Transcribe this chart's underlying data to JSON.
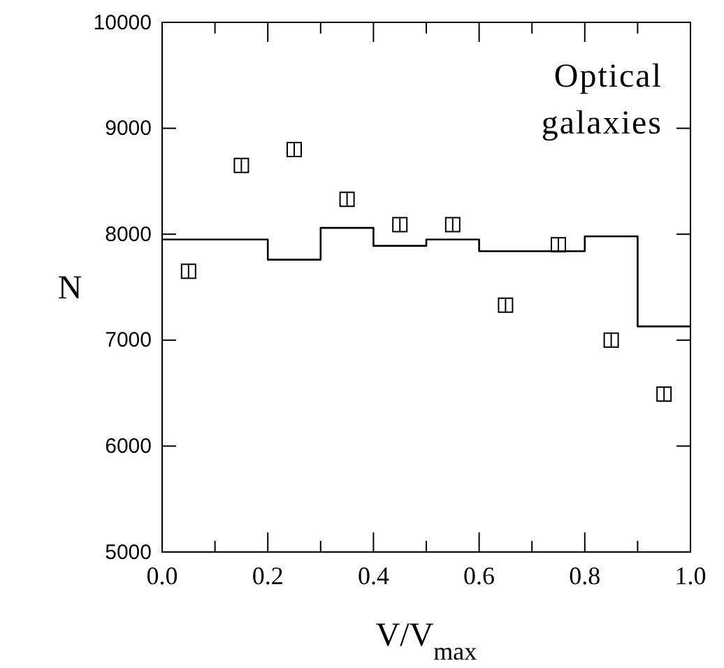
{
  "chart_data": {
    "type": "scatter",
    "xlabel": "V/V$_{max}$",
    "ylabel": "N",
    "annotations": [
      "Optical\ngalaxies"
    ],
    "xlim": [
      0,
      1
    ],
    "ylim": [
      5000,
      10000
    ],
    "xticks": [
      {
        "value": 0,
        "label": "0.0"
      },
      {
        "value": 0.1,
        "label": null
      },
      {
        "value": 0.2,
        "label": "0.2"
      },
      {
        "value": 0.3,
        "label": null
      },
      {
        "value": 0.4,
        "label": "0.4"
      },
      {
        "value": 0.5,
        "label": null
      },
      {
        "value": 0.6,
        "label": "0.6"
      },
      {
        "value": 0.7,
        "label": null
      },
      {
        "value": 0.8,
        "label": "0.8"
      },
      {
        "value": 0.9,
        "label": null
      },
      {
        "value": 1,
        "label": "1.0"
      }
    ],
    "yticks": [
      5000,
      6000,
      7000,
      8000,
      9000,
      10000
    ],
    "grid": false,
    "marker": "square",
    "series": [
      {
        "type": "histogram",
        "color": "#000000",
        "bins": [
          0,
          0.1,
          0.2,
          0.3,
          0.4,
          0.5,
          0.6,
          0.7,
          0.8,
          0.9,
          1.0
        ],
        "values": [
          7950,
          7950,
          7760,
          8060,
          7890,
          7950,
          7840,
          7840,
          7980,
          7130
        ]
      },
      {
        "color": "#000000",
        "x": [
          0.05,
          0.15,
          0.25,
          0.35,
          0.45,
          0.55,
          0.65,
          0.75,
          0.85,
          0.95
        ],
        "values": [
          7650,
          8650,
          8800,
          8330,
          8090,
          8090,
          7330,
          7900,
          7000,
          6490
        ],
        "errors": [
          60,
          60,
          60,
          60,
          60,
          60,
          60,
          60,
          60,
          60
        ]
      }
    ]
  }
}
